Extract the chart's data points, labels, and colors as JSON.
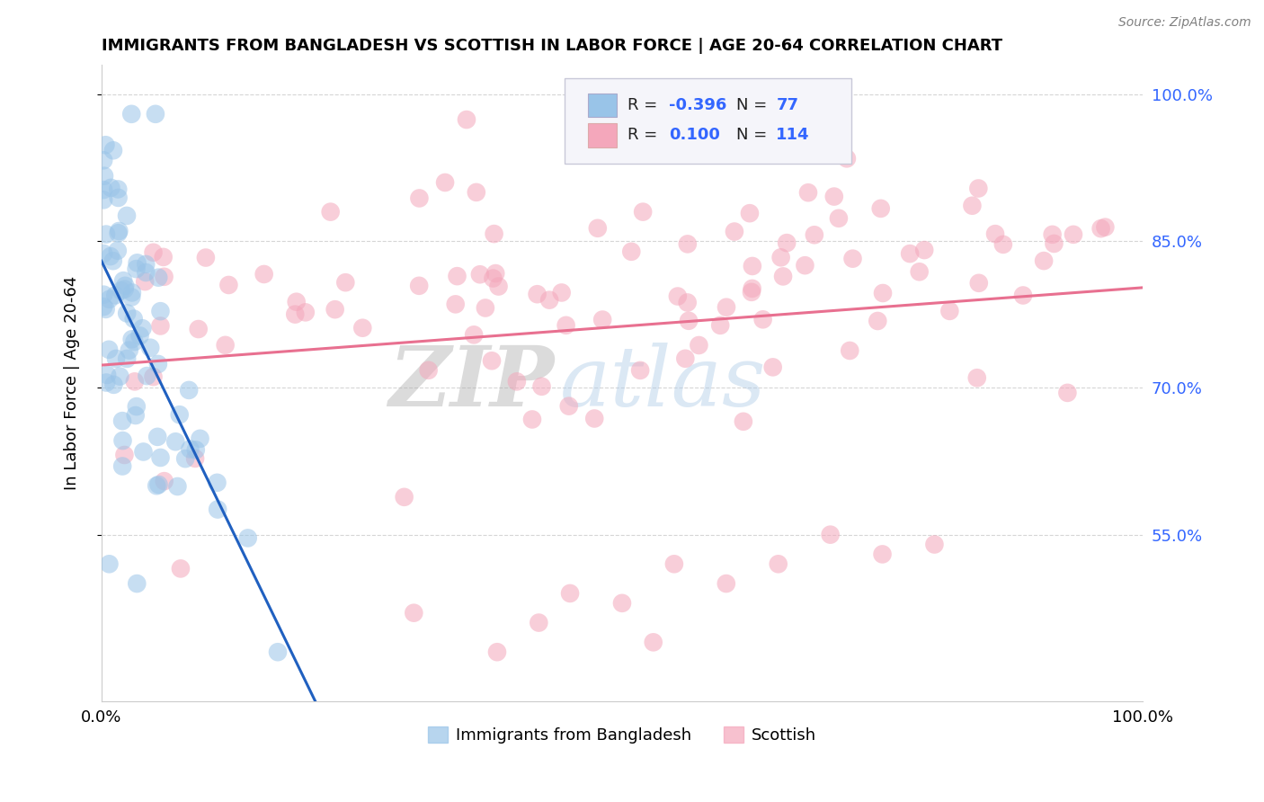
{
  "title": "IMMIGRANTS FROM BANGLADESH VS SCOTTISH IN LABOR FORCE | AGE 20-64 CORRELATION CHART",
  "source_text": "Source: ZipAtlas.com",
  "ylabel": "In Labor Force | Age 20-64",
  "watermark_zip": "ZIP",
  "watermark_atlas": "atlas",
  "blue_color": "#99c4e8",
  "pink_color": "#f4a7bb",
  "blue_line_color": "#2060c0",
  "pink_line_color": "#e87090",
  "legend_box_color": "#e8e8f0",
  "text_blue": "#3366ff",
  "xlim": [
    0.0,
    1.0
  ],
  "ylim": [
    0.38,
    1.03
  ],
  "yticks": [
    0.55,
    0.7,
    0.85,
    1.0
  ],
  "ytick_labels": [
    "55.0%",
    "70.0%",
    "85.0%",
    "100.0%"
  ],
  "xtick_labels": [
    "0.0%",
    "100.0%"
  ],
  "background_color": "#ffffff",
  "grid_color": "#cccccc",
  "seed": 1234,
  "n_blue": 77,
  "n_pink": 114
}
